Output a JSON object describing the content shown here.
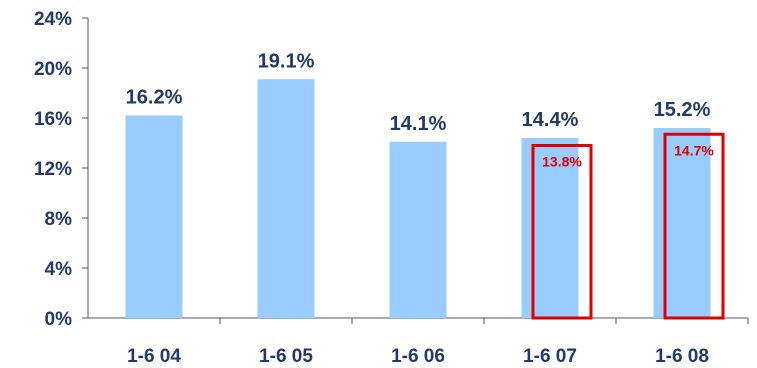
{
  "chart_data": {
    "type": "bar",
    "categories": [
      "1-6 04",
      "1-6 05",
      "1-6 06",
      "1-6 07",
      "1-6 08"
    ],
    "series": [
      {
        "values": [
          16.2,
          19.1,
          14.1,
          14.4,
          15.2
        ],
        "labels": [
          "16.2%",
          "19.1%",
          "14.1%",
          "14.4%",
          "15.2%"
        ],
        "color": "#99ccff"
      },
      {
        "values": [
          null,
          null,
          null,
          13.8,
          14.7
        ],
        "labels": [
          "",
          "",
          "",
          "13.8%",
          "14.7%"
        ],
        "style": "outline",
        "color": "#e00000"
      }
    ],
    "ylim": [
      0,
      24
    ],
    "yticks": [
      0,
      4,
      8,
      12,
      16,
      20,
      24
    ],
    "ytick_labels": [
      "0%",
      "4%",
      "8%",
      "12%",
      "16%",
      "20%",
      "24%"
    ],
    "title": "",
    "xlabel": "",
    "ylabel": "",
    "grid": false,
    "text_color": "#1f3a6b",
    "axis_color": "#555555"
  }
}
